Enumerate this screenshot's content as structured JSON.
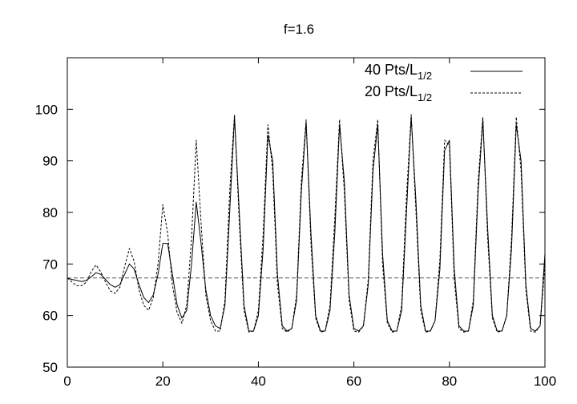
{
  "chart_data": {
    "type": "line",
    "title": "f=1.6",
    "xlabel": "",
    "ylabel": "",
    "xlim": [
      0,
      100
    ],
    "ylim": [
      50,
      110
    ],
    "xticks": [
      0,
      20,
      40,
      60,
      80,
      100
    ],
    "yticks": [
      50,
      60,
      70,
      80,
      90,
      100
    ],
    "grid": false,
    "legend_position": "top-right",
    "reference_line": {
      "y": 67.3,
      "style": "dashed"
    },
    "series": [
      {
        "name": "40 Pts/L",
        "name_subscript": "1/2",
        "style": "solid",
        "x": [
          0,
          1,
          2,
          3,
          4,
          5,
          6,
          7,
          8,
          9,
          10,
          11,
          12,
          13,
          14,
          15,
          16,
          17,
          18,
          19,
          20,
          21,
          22,
          23,
          24,
          25,
          26,
          27,
          28,
          29,
          30,
          31,
          32,
          33,
          34,
          35,
          36,
          37,
          38,
          39,
          40,
          41,
          42,
          43,
          44,
          45,
          46,
          47,
          48,
          49,
          50,
          51,
          52,
          53,
          54,
          55,
          56,
          57,
          58,
          59,
          60,
          61,
          62,
          63,
          64,
          65,
          66,
          67,
          68,
          69,
          70,
          71,
          72,
          73,
          74,
          75,
          76,
          77,
          78,
          79,
          80,
          81,
          82,
          83,
          84,
          85,
          86,
          87,
          88,
          89,
          90,
          91,
          92,
          93,
          94,
          95,
          96,
          97,
          98,
          99,
          100
        ],
        "y": [
          67.2,
          67.0,
          66.8,
          66.6,
          66.8,
          67.5,
          68.3,
          68.0,
          67.0,
          66.0,
          65.5,
          66.0,
          68.0,
          70.0,
          69.0,
          66.0,
          63.5,
          62.5,
          64.0,
          68.0,
          74.0,
          74.0,
          68.0,
          62.0,
          59.5,
          61.0,
          70.0,
          82.0,
          74.0,
          65.0,
          60.0,
          58.0,
          57.5,
          62.0,
          80.0,
          98.5,
          80.0,
          62.0,
          57.0,
          57.0,
          60.0,
          73.0,
          95.0,
          90.0,
          68.0,
          58.0,
          57.0,
          57.5,
          63.0,
          84.0,
          97.5,
          76.0,
          60.0,
          57.0,
          57.0,
          61.0,
          76.0,
          97.0,
          86.0,
          64.0,
          57.5,
          57.0,
          58.0,
          66.0,
          88.0,
          97.0,
          72.0,
          59.0,
          57.0,
          57.0,
          61.0,
          80.0,
          98.5,
          82.0,
          62.0,
          57.0,
          57.0,
          59.0,
          69.0,
          92.0,
          94.0,
          69.0,
          58.0,
          57.0,
          57.0,
          62.0,
          84.0,
          98.0,
          77.0,
          60.0,
          57.0,
          57.0,
          60.0,
          73.0,
          97.0,
          90.0,
          66.0,
          57.5,
          57.0,
          58.0,
          72.0
        ]
      },
      {
        "name": "20 Pts/L",
        "name_subscript": "1/2",
        "style": "dashed",
        "x": [
          0,
          1,
          2,
          3,
          4,
          5,
          6,
          7,
          8,
          9,
          10,
          11,
          12,
          13,
          14,
          15,
          16,
          17,
          18,
          19,
          20,
          21,
          22,
          23,
          24,
          25,
          26,
          27,
          28,
          29,
          30,
          31,
          32,
          33,
          34,
          35,
          36,
          37,
          38,
          39,
          40,
          41,
          42,
          43,
          44,
          45,
          46,
          47,
          48,
          49,
          50,
          51,
          52,
          53,
          54,
          55,
          56,
          57,
          58,
          59,
          60,
          61,
          62,
          63,
          64,
          65,
          66,
          67,
          68,
          69,
          70,
          71,
          72,
          73,
          74,
          75,
          76,
          77,
          78,
          79,
          80,
          81,
          82,
          83,
          84,
          85,
          86,
          87,
          88,
          89,
          90,
          91,
          92,
          93,
          94,
          95,
          96,
          97,
          98,
          99,
          100
        ],
        "y": [
          67.3,
          66.5,
          65.8,
          65.8,
          66.5,
          68.5,
          69.8,
          68.5,
          66.5,
          64.8,
          64.3,
          65.5,
          69.5,
          73.0,
          70.5,
          65.0,
          62.0,
          61.0,
          63.5,
          70.0,
          81.5,
          76.0,
          66.0,
          60.5,
          58.5,
          62.0,
          75.0,
          94.0,
          78.0,
          64.0,
          59.0,
          57.0,
          57.0,
          63.0,
          84.0,
          99.0,
          78.0,
          61.0,
          56.8,
          57.0,
          61.0,
          76.0,
          97.0,
          88.0,
          66.0,
          57.5,
          56.8,
          57.5,
          64.0,
          86.0,
          98.0,
          74.0,
          59.5,
          56.8,
          57.0,
          62.0,
          79.0,
          98.0,
          84.0,
          63.0,
          57.0,
          56.8,
          58.0,
          67.0,
          90.0,
          98.0,
          70.0,
          58.5,
          56.8,
          57.0,
          62.0,
          83.0,
          99.0,
          80.0,
          61.0,
          56.8,
          57.0,
          59.0,
          71.0,
          94.0,
          93.0,
          67.0,
          57.5,
          56.8,
          57.0,
          63.0,
          86.0,
          98.5,
          75.0,
          59.5,
          56.8,
          57.0,
          60.0,
          75.0,
          98.5,
          88.0,
          65.0,
          57.0,
          56.8,
          58.0,
          70.0
        ]
      }
    ]
  }
}
